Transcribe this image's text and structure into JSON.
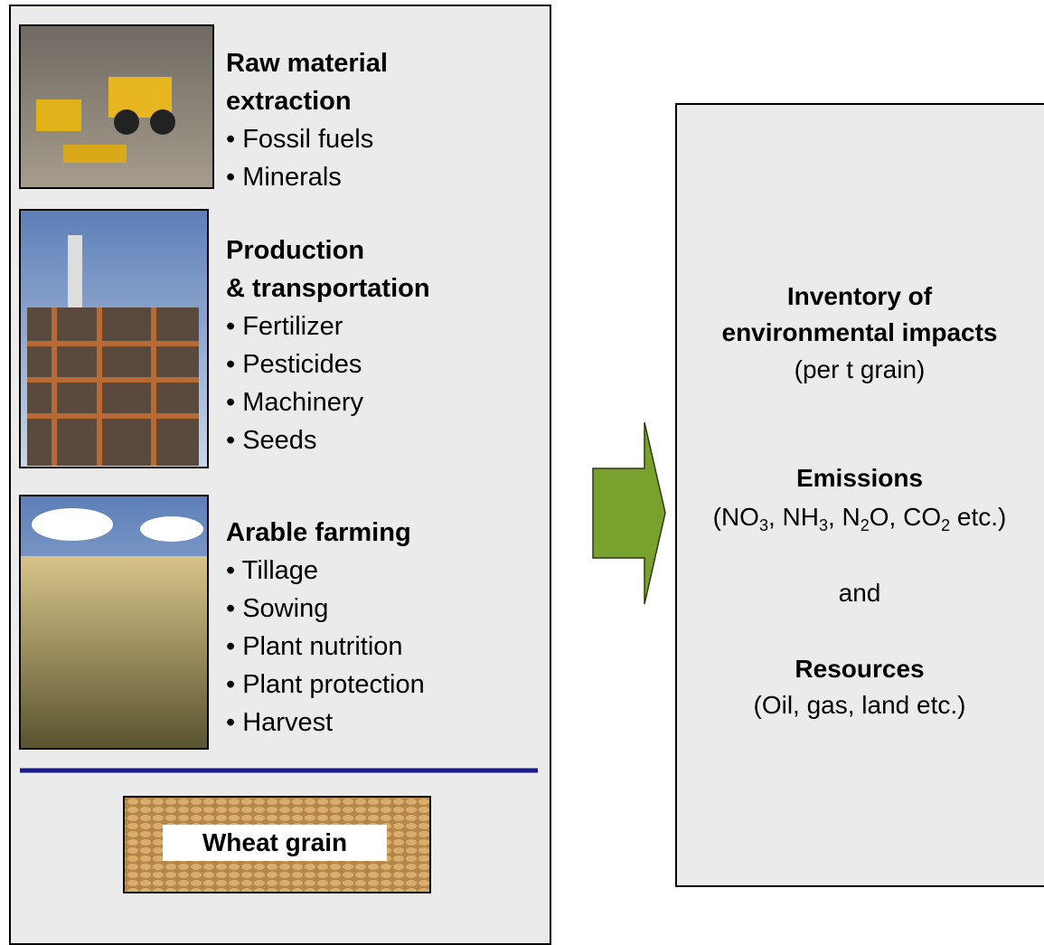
{
  "left": {
    "sections": [
      {
        "title": [
          "Raw material",
          "extraction"
        ],
        "items": [
          "• Fossil fuels",
          "• Minerals"
        ]
      },
      {
        "title": [
          "Production",
          "& transportation"
        ],
        "items": [
          "• Fertilizer",
          "• Pesticides",
          "• Machinery",
          "• Seeds"
        ]
      },
      {
        "title": [
          "Arable farming"
        ],
        "items": [
          "• Tillage",
          "• Sowing",
          "• Plant nutrition",
          "• Plant protection",
          "• Harvest"
        ]
      }
    ],
    "product": "Wheat grain"
  },
  "right": {
    "heading": [
      "Inventory of",
      "environmental impacts"
    ],
    "heading_note": "(per t grain)",
    "emissions": "Emissions",
    "emissions_detail": [
      {
        "text": "(NO",
        "sub": "3"
      },
      {
        "text": ", NH",
        "sub": "3"
      },
      {
        "text": ", N",
        "sub": "2"
      },
      {
        "text": "O, CO",
        "sub": "2"
      },
      {
        "text": " etc.)"
      }
    ],
    "conjunction": "and",
    "resources": "Resources",
    "resources_detail": "(Oil, gas, land etc.)"
  }
}
